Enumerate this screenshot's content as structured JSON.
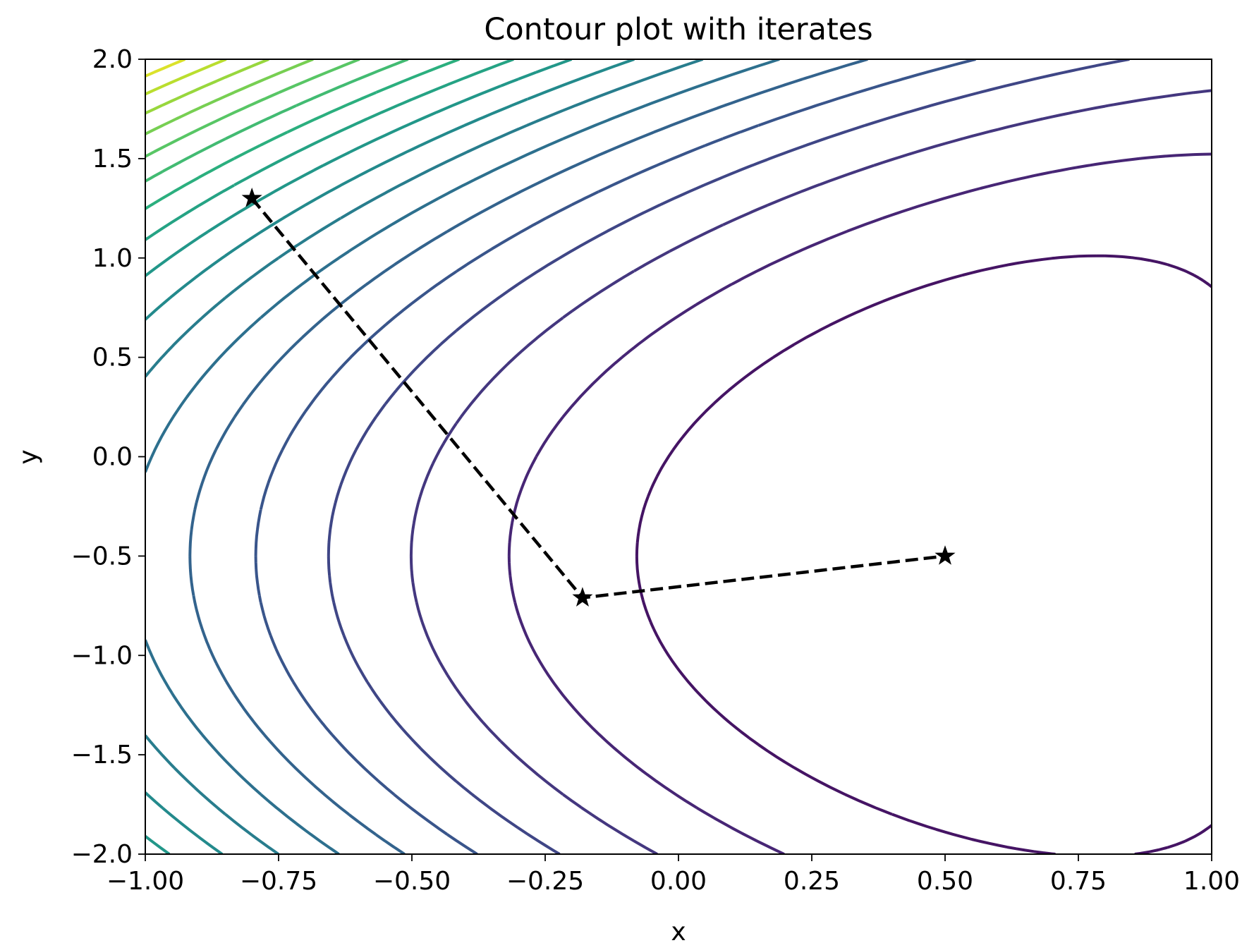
{
  "chart_data": {
    "type": "contour",
    "title": "Contour plot with iterates",
    "xlabel": "x",
    "ylabel": "y",
    "xlim": [
      -1.0,
      1.0
    ],
    "ylim": [
      -2.0,
      2.0
    ],
    "x_ticks": [
      -1.0,
      -0.75,
      -0.5,
      -0.25,
      0.0,
      0.25,
      0.5,
      0.75,
      1.0
    ],
    "x_tick_labels": [
      "−1.00",
      "−0.75",
      "−0.50",
      "−0.25",
      "0.00",
      "0.25",
      "0.50",
      "0.75",
      "1.00"
    ],
    "y_ticks": [
      -2.0,
      -1.5,
      -1.0,
      -0.5,
      0.0,
      0.5,
      1.0,
      1.5,
      2.0
    ],
    "y_tick_labels": [
      "−2.0",
      "−1.5",
      "−1.0",
      "−0.5",
      "0.0",
      "0.5",
      "1.0",
      "1.5",
      "2.0"
    ],
    "colormap": "viridis",
    "contour_levels": 18,
    "grid": false,
    "iterates": {
      "line_style": "dashed",
      "marker": "star",
      "color": "#000000",
      "x": [
        -0.8,
        -0.18,
        0.5
      ],
      "y": [
        1.3,
        -0.71,
        -0.5
      ]
    }
  }
}
